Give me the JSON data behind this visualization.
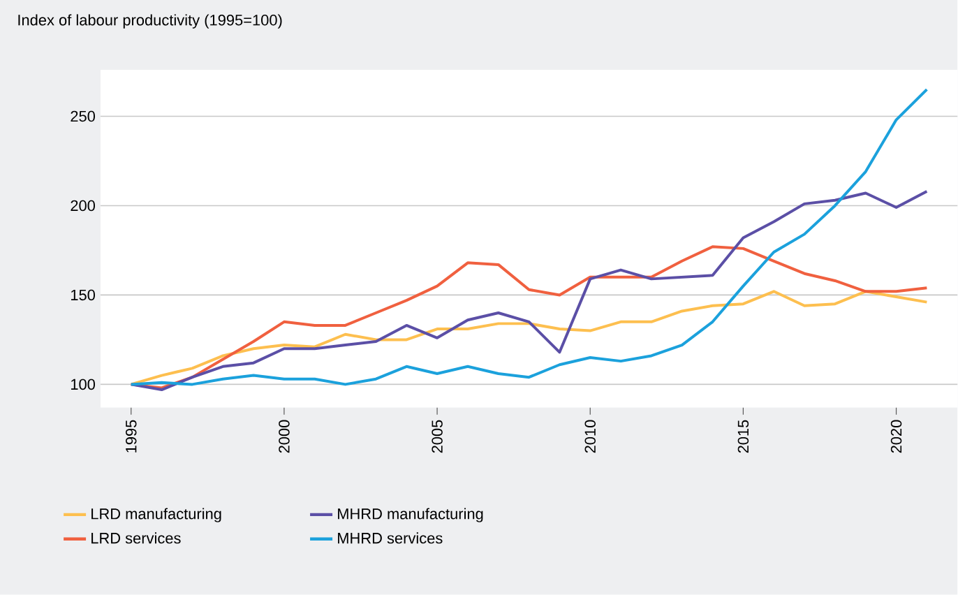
{
  "chart_data": {
    "type": "line",
    "title": "Index of labour productivity (1995=100)",
    "x": [
      1995,
      1996,
      1997,
      1998,
      1999,
      2000,
      2001,
      2002,
      2003,
      2004,
      2005,
      2006,
      2007,
      2008,
      2009,
      2010,
      2011,
      2012,
      2013,
      2014,
      2015,
      2016,
      2017,
      2018,
      2019,
      2020,
      2021
    ],
    "series": [
      {
        "name": "LRD manufacturing",
        "color": "#fdbf4f",
        "values": [
          100,
          105,
          109,
          116,
          120,
          122,
          121,
          128,
          125,
          125,
          131,
          131,
          134,
          134,
          131,
          130,
          135,
          135,
          141,
          144,
          145,
          152,
          144,
          145,
          152,
          149,
          146
        ]
      },
      {
        "name": "LRD services",
        "color": "#f0603f",
        "values": [
          100,
          98,
          104,
          114,
          124,
          135,
          133,
          133,
          140,
          147,
          155,
          168,
          167,
          153,
          150,
          160,
          160,
          160,
          169,
          177,
          176,
          169,
          162,
          158,
          152,
          152,
          154
        ]
      },
      {
        "name": "MHRD manufacturing",
        "color": "#5b4fa6",
        "values": [
          100,
          97,
          104,
          110,
          112,
          120,
          120,
          122,
          124,
          133,
          126,
          136,
          140,
          135,
          118,
          159,
          164,
          159,
          160,
          161,
          182,
          191,
          201,
          203,
          207,
          199,
          208
        ]
      },
      {
        "name": "MHRD services",
        "color": "#1ba1dc",
        "values": [
          100,
          101,
          100,
          103,
          105,
          103,
          103,
          100,
          103,
          110,
          106,
          110,
          106,
          104,
          111,
          115,
          113,
          116,
          122,
          135,
          155,
          174,
          184,
          200,
          219,
          248,
          265
        ]
      }
    ],
    "xlim": [
      1994,
      2022
    ],
    "xticks": [
      1995,
      2000,
      2005,
      2010,
      2015,
      2020
    ],
    "ylim": [
      87,
      276
    ],
    "yticks": [
      100,
      150,
      200,
      250
    ],
    "grid": "y",
    "legend": "bottom",
    "marker": "none",
    "line_style": "solid"
  }
}
